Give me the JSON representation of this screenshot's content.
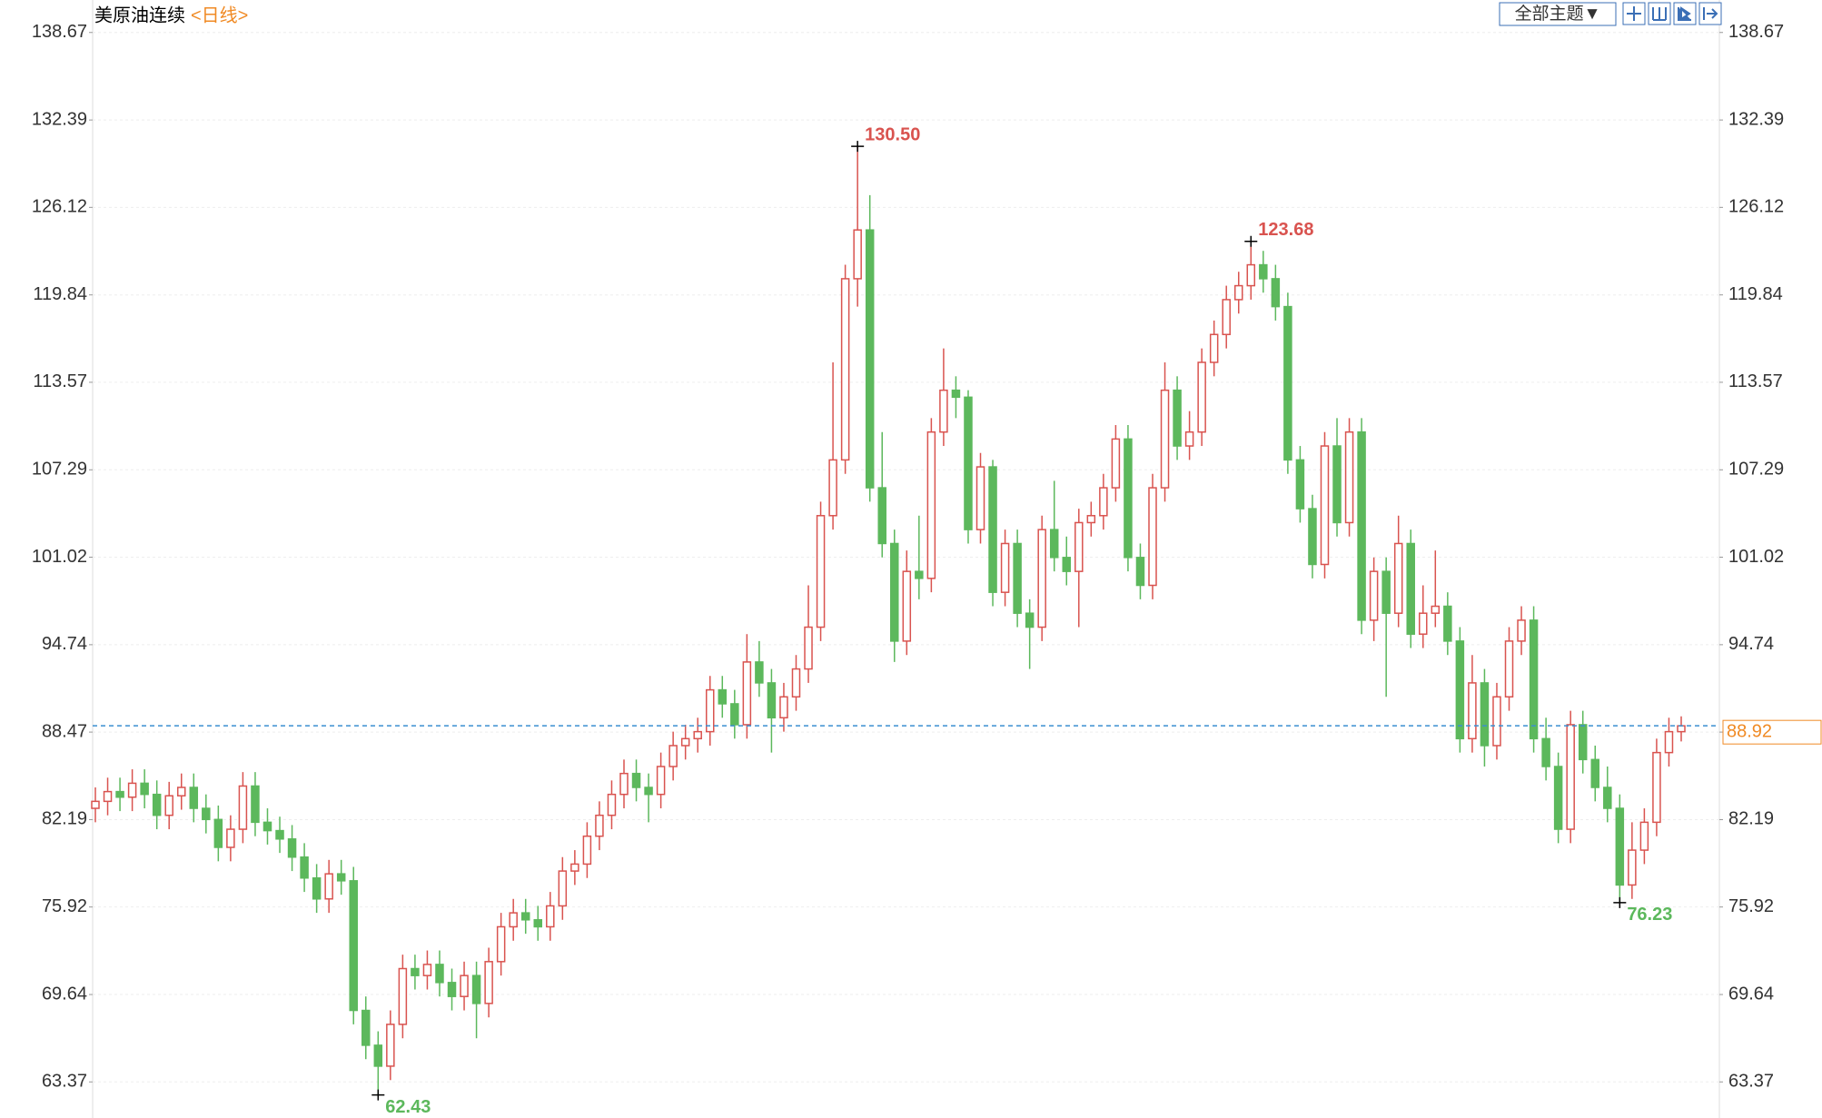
{
  "chart_data": {
    "type": "candlestick",
    "title": "美原油连续",
    "period": "<日线>",
    "theme_button": "全部主题▼",
    "up_color": "#d9534f",
    "down_color": "#5cb85c",
    "ylim": [
      60.78,
      141.0
    ],
    "yticks": [
      63.37,
      69.64,
      75.92,
      82.19,
      88.47,
      94.74,
      101.02,
      107.29,
      113.57,
      119.84,
      126.12,
      132.39,
      138.67
    ],
    "grid": true,
    "open": [
      83.0,
      83.5,
      84.2,
      83.8,
      84.8,
      84.0,
      82.5,
      83.9,
      84.5,
      83.0,
      82.2,
      80.2,
      81.5,
      84.6,
      82.0,
      81.4,
      80.8,
      79.5,
      78.0,
      76.5,
      78.3,
      77.8,
      68.5,
      66.0,
      64.5,
      67.5,
      71.5,
      71.0,
      71.8,
      70.5,
      69.5,
      71.0,
      69.0,
      72.0,
      74.5,
      75.5,
      75.0,
      74.5,
      76.0,
      78.5,
      79.0,
      81.0,
      82.5,
      84.0,
      85.5,
      84.5,
      84.0,
      86.0,
      87.5,
      88.0,
      88.5,
      91.5,
      90.5,
      89.0,
      93.5,
      92.0,
      89.5,
      91.0,
      93.0,
      96.0,
      104.0,
      108.0,
      121.0,
      124.5,
      106.0,
      102.0,
      95.0,
      100.0,
      99.5,
      110.0,
      113.0,
      112.5,
      103.0,
      107.5,
      98.5,
      102.0,
      97.0,
      96.0,
      103.0,
      101.0,
      100.0,
      103.5,
      104.0,
      106.0,
      109.5,
      101.0,
      99.0,
      106.0,
      113.0,
      109.0,
      110.0,
      115.0,
      117.0,
      119.5,
      120.5,
      122.0,
      121.0,
      119.0,
      108.0,
      104.5,
      100.5,
      109.0,
      103.5,
      110.0,
      96.5,
      100.0,
      97.0,
      102.0,
      95.5,
      97.0,
      97.5,
      95.0,
      88.0,
      92.0,
      87.5,
      91.0,
      95.0,
      96.5,
      88.0,
      86.0,
      81.5,
      89.0,
      86.5,
      84.5,
      83.0,
      77.5,
      80.0,
      82.0,
      87.0,
      88.5
    ],
    "high": [
      84.5,
      85.2,
      85.2,
      85.8,
      85.8,
      85.0,
      84.9,
      85.5,
      85.5,
      84.0,
      83.2,
      82.5,
      85.6,
      85.6,
      83.0,
      82.4,
      81.8,
      80.5,
      79.0,
      79.3,
      79.3,
      78.8,
      69.5,
      67.0,
      68.5,
      72.5,
      72.5,
      72.8,
      72.8,
      71.5,
      72.0,
      72.0,
      73.0,
      75.5,
      76.5,
      76.5,
      76.0,
      77.0,
      79.5,
      80.0,
      82.0,
      83.5,
      85.0,
      86.5,
      86.5,
      85.5,
      87.0,
      88.5,
      89.0,
      89.5,
      92.5,
      92.5,
      91.5,
      95.5,
      95.0,
      93.0,
      92.0,
      94.0,
      99.0,
      105.0,
      115.0,
      122.0,
      130.5,
      127.0,
      110.0,
      103.0,
      101.5,
      104.0,
      111.0,
      116.0,
      114.0,
      113.0,
      108.5,
      108.0,
      103.0,
      103.0,
      98.0,
      104.0,
      106.5,
      102.5,
      104.5,
      105.0,
      107.0,
      110.5,
      110.5,
      102.0,
      107.0,
      115.0,
      114.0,
      111.5,
      116.0,
      118.0,
      120.5,
      121.5,
      123.68,
      123.0,
      122.0,
      120.0,
      109.0,
      105.5,
      110.0,
      111.0,
      111.0,
      111.0,
      101.0,
      101.0,
      104.0,
      103.0,
      99.0,
      101.5,
      98.5,
      96.0,
      94.0,
      93.0,
      92.0,
      96.0,
      97.5,
      97.5,
      89.5,
      87.0,
      90.0,
      90.0,
      87.5,
      86.0,
      84.0,
      82.0,
      83.0,
      88.0,
      89.5,
      89.6
    ],
    "low": [
      82.0,
      82.5,
      82.8,
      82.8,
      83.0,
      81.5,
      81.5,
      82.9,
      82.0,
      81.2,
      79.2,
      79.2,
      80.5,
      81.0,
      80.4,
      79.8,
      78.5,
      77.0,
      75.5,
      75.5,
      76.8,
      67.5,
      65.0,
      62.43,
      63.5,
      66.5,
      70.0,
      70.0,
      69.5,
      68.5,
      68.5,
      66.5,
      68.0,
      71.0,
      73.5,
      74.0,
      73.5,
      73.5,
      75.0,
      77.5,
      78.0,
      80.0,
      81.5,
      83.0,
      83.5,
      82.0,
      83.0,
      85.0,
      86.5,
      87.0,
      87.5,
      89.5,
      88.0,
      88.0,
      91.0,
      87.0,
      88.5,
      90.0,
      92.0,
      95.0,
      103.0,
      107.0,
      119.0,
      105.0,
      101.0,
      93.5,
      94.0,
      98.0,
      98.5,
      109.0,
      111.0,
      102.0,
      102.0,
      97.5,
      97.5,
      96.0,
      93.0,
      95.0,
      100.0,
      99.0,
      96.0,
      102.5,
      103.0,
      105.0,
      100.0,
      98.0,
      98.0,
      105.0,
      108.0,
      108.0,
      109.0,
      114.0,
      116.0,
      118.5,
      119.5,
      120.0,
      118.0,
      107.0,
      103.5,
      99.5,
      99.5,
      102.5,
      102.5,
      95.5,
      95.0,
      91.0,
      96.0,
      94.5,
      94.5,
      96.0,
      94.0,
      87.0,
      87.0,
      86.0,
      86.5,
      90.0,
      94.0,
      87.0,
      85.0,
      80.5,
      80.5,
      85.5,
      83.5,
      82.0,
      76.23,
      76.5,
      79.0,
      81.0,
      86.0,
      87.8
    ],
    "close": [
      83.5,
      84.2,
      83.8,
      84.8,
      84.0,
      82.5,
      83.9,
      84.5,
      83.0,
      82.2,
      80.2,
      81.5,
      84.6,
      82.0,
      81.4,
      80.8,
      79.5,
      78.0,
      76.5,
      78.3,
      77.8,
      68.5,
      66.0,
      64.5,
      67.5,
      71.5,
      71.0,
      71.8,
      70.5,
      69.5,
      71.0,
      69.0,
      72.0,
      74.5,
      75.5,
      75.0,
      74.5,
      76.0,
      78.5,
      79.0,
      81.0,
      82.5,
      84.0,
      85.5,
      84.5,
      84.0,
      86.0,
      87.5,
      88.0,
      88.5,
      91.5,
      90.5,
      89.0,
      93.5,
      92.0,
      89.5,
      91.0,
      93.0,
      96.0,
      104.0,
      108.0,
      121.0,
      124.5,
      106.0,
      102.0,
      95.0,
      100.0,
      99.5,
      110.0,
      113.0,
      112.5,
      103.0,
      107.5,
      98.5,
      102.0,
      97.0,
      96.0,
      103.0,
      101.0,
      100.0,
      103.5,
      104.0,
      106.0,
      109.5,
      101.0,
      99.0,
      106.0,
      113.0,
      109.0,
      110.0,
      115.0,
      117.0,
      119.5,
      120.5,
      122.0,
      121.0,
      119.0,
      108.0,
      104.5,
      100.5,
      109.0,
      103.5,
      110.0,
      96.5,
      100.0,
      97.0,
      102.0,
      95.5,
      97.0,
      97.5,
      95.0,
      88.0,
      92.0,
      87.5,
      91.0,
      95.0,
      96.5,
      88.0,
      86.0,
      81.5,
      89.0,
      86.5,
      84.5,
      83.0,
      77.5,
      80.0,
      82.0,
      87.0,
      88.5,
      88.92
    ],
    "high_labels": [
      {
        "value": 130.5,
        "label": "130.50"
      },
      {
        "value": 123.68,
        "label": "123.68"
      }
    ],
    "low_labels": [
      {
        "value": 62.43,
        "label": "62.43"
      },
      {
        "value": 76.23,
        "label": "76.23"
      }
    ],
    "last": {
      "value": 88.92,
      "label": "88.92"
    },
    "last_line_color": "#3a8fd0",
    "last_label_color": "#f08a24"
  }
}
